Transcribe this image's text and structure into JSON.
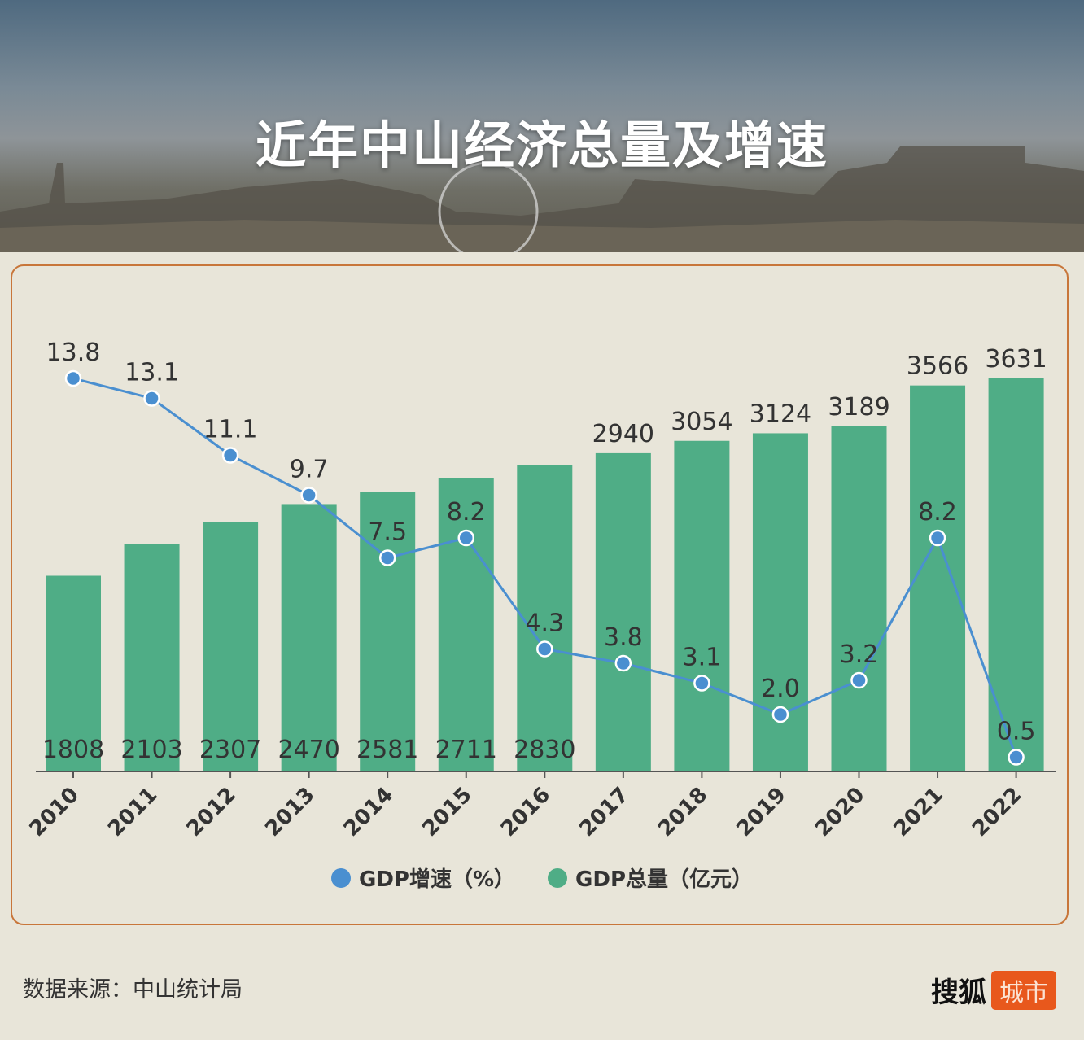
{
  "title": "近年中山经济总量及增速",
  "source": "数据来源：中山统计局",
  "logo": {
    "text": "搜狐",
    "badge": "城市"
  },
  "colors": {
    "bar": "#4fad86",
    "line": "#4a8fd0",
    "border": "#c8763a",
    "background": "#e8e5d9"
  },
  "chart_data": {
    "type": "bar+line",
    "title": "近年中山经济总量及增速",
    "categories": [
      "2010",
      "2011",
      "2012",
      "2013",
      "2014",
      "2015",
      "2016",
      "2017",
      "2018",
      "2019",
      "2020",
      "2021",
      "2022"
    ],
    "series": [
      {
        "name": "GDP总量(亿元)",
        "type": "bar",
        "values": [
          1808,
          2103,
          2307,
          2470,
          2581,
          2711,
          2830,
          2940,
          3054,
          3124,
          3189,
          3566,
          3631
        ]
      },
      {
        "name": "GDP增速(%)",
        "type": "line",
        "values": [
          13.8,
          13.1,
          11.1,
          9.7,
          7.5,
          8.2,
          4.3,
          3.8,
          3.1,
          2.0,
          3.2,
          8.2,
          0.5
        ]
      }
    ],
    "value_labels_line": [
      "13.8",
      "13.1",
      "11.1",
      "9.7",
      "7.5",
      "8.2",
      "4.3",
      "3.8",
      "3.1",
      "2.0",
      "3.2",
      "8.2",
      "0.5"
    ],
    "legend": [
      "GDP增速（%）",
      "GDP总量（亿元）"
    ],
    "legend_position": "bottom",
    "grid": false
  }
}
